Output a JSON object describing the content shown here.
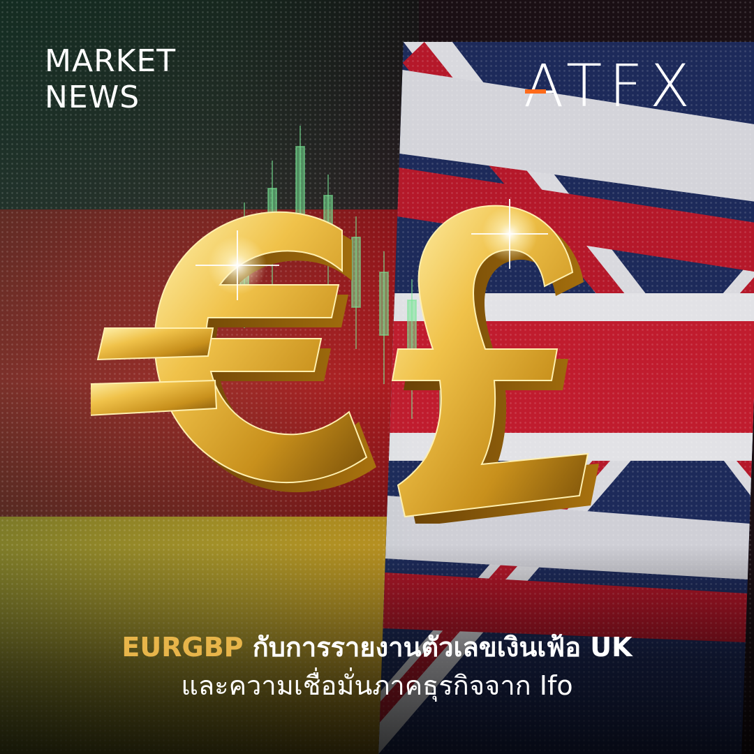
{
  "header": {
    "label_line1": "MARKET",
    "label_line2": "NEWS"
  },
  "brand": {
    "logo_text": "ATFX",
    "logo_accent_color": "#ff6a1a"
  },
  "visual": {
    "left_symbol": "euro-sign",
    "right_symbol": "pound-sign",
    "left_flag": "germany-flag",
    "right_flag": "united-kingdom-flag",
    "symbol_color": "#e8b54a"
  },
  "headline": {
    "pair": "EURGBP",
    "line1_rest": "กับการรายงานตัวเลขเงินเฟ้อ UK",
    "line2": "และความเชื่อมั่นภาคธุรกิจจาก Ifo",
    "pair_color": "#e8b54a"
  }
}
